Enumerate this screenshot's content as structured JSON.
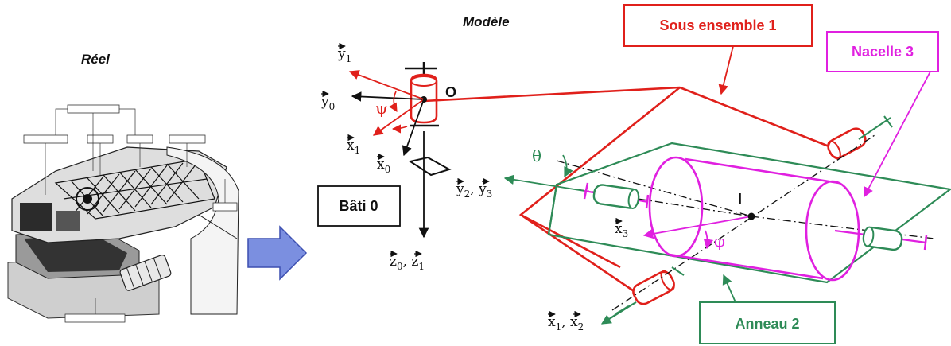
{
  "titles": {
    "real": "Réel",
    "model": "Modèle"
  },
  "labels": {
    "bati": "Bâti 0",
    "sous_ensemble": "Sous ensemble 1",
    "nacelle": "Nacelle 3",
    "anneau": "Anneau 2",
    "point_O": "O",
    "point_I": "I"
  },
  "angles": {
    "psi": "ψ",
    "theta": "θ",
    "phi": "φ"
  },
  "vectors": {
    "y1": "y",
    "y1_sub": "1",
    "y0": "y",
    "y0_sub": "0",
    "x1": "x",
    "x1_sub": "1",
    "x0": "x",
    "x0_sub": "0",
    "z0z1_a": "z",
    "z0z1_a_sub": "0",
    "z0z1_b": "z",
    "z0z1_b_sub": "1",
    "y2y3_a": "y",
    "y2y3_a_sub": "2",
    "y2y3_b": "y",
    "y2y3_b_sub": "3",
    "x3": "x",
    "x3_sub": "3",
    "x1x2_a": "x",
    "x1x2_a_sub": "1",
    "x1x2_b": "x",
    "x1x2_b_sub": "2"
  },
  "colors": {
    "black": "#111111",
    "red": "#e0201b",
    "green": "#2e8b57",
    "magenta": "#e020e0",
    "arrow_fill": "#7b8fe0",
    "arrow_stroke": "#3c4fb0"
  },
  "icons": {
    "transition": "right-arrow-icon",
    "photo": "mechanism-photo-icon"
  }
}
